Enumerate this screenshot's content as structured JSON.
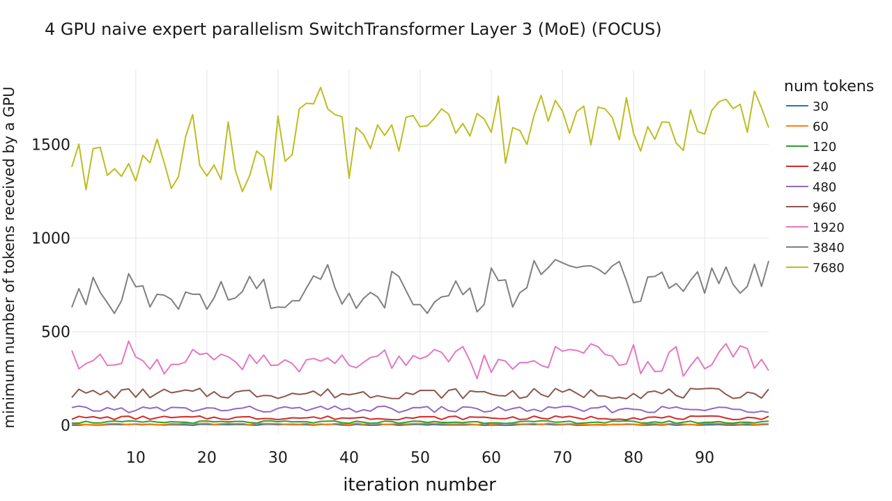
{
  "chart_data": {
    "type": "line",
    "title": "4 GPU naive expert parallelism SwitchTransformer Layer 3 (MoE) (FOCUS)",
    "xlabel": "iteration number",
    "ylabel": "minimum number of tokens received by a GPU",
    "xlim": [
      1,
      99
    ],
    "ylim": [
      -40,
      1900
    ],
    "xticks": [
      10,
      20,
      30,
      40,
      50,
      60,
      70,
      80,
      90
    ],
    "yticks": [
      0,
      500,
      1000,
      1500
    ],
    "grid": true,
    "legend_position": "right",
    "legend_title": "num tokens",
    "series": [
      {
        "name": "30",
        "color": "#1f77b4",
        "pattern": {
          "base": 3,
          "amp": 3,
          "p": 5
        }
      },
      {
        "name": "60",
        "color": "#ff7f0e",
        "pattern": {
          "base": 7,
          "amp": 4,
          "p": 7
        }
      },
      {
        "name": "120",
        "color": "#2ca02c",
        "pattern": {
          "base": 17,
          "amp": 7,
          "p": 3
        }
      },
      {
        "name": "240",
        "color": "#d62728",
        "pattern": {
          "base": 40,
          "amp": 10,
          "p": 4
        }
      },
      {
        "name": "480",
        "color": "#9467bd",
        "pattern": {
          "base": 85,
          "amp": 18,
          "p": 6
        }
      },
      {
        "name": "960",
        "color": "#8c564b",
        "pattern": {
          "base": 170,
          "amp": 28,
          "p": 2
        }
      },
      {
        "name": "1920",
        "color": "#e377c2",
        "values": [
          400,
          302,
          330,
          345,
          380,
          320,
          322,
          330,
          450,
          365,
          345,
          300,
          352,
          275,
          325,
          325,
          338,
          405,
          378,
          385,
          350,
          380,
          366,
          340,
          298,
          378,
          330,
          375,
          320,
          322,
          350,
          330,
          286,
          350,
          357,
          343,
          360,
          330,
          375,
          320,
          307,
          335,
          362,
          370,
          402,
          305,
          370,
          320,
          372,
          355,
          370,
          405,
          390,
          340,
          395,
          420,
          345,
          250,
          375,
          283,
          352,
          343,
          300,
          335,
          335,
          345,
          320,
          308,
          420,
          396,
          405,
          400,
          386,
          435,
          420,
          378,
          370,
          320,
          328,
          430,
          276,
          340,
          287,
          290,
          390,
          420,
          262,
          318,
          365,
          302,
          323,
          390,
          436,
          365,
          425,
          410,
          305,
          352,
          292
        ]
      },
      {
        "name": "3840",
        "color": "#7f7f7f",
        "values": [
          630,
          730,
          645,
          790,
          710,
          655,
          598,
          665,
          810,
          740,
          745,
          632,
          700,
          695,
          672,
          620,
          712,
          700,
          700,
          620,
          680,
          768,
          670,
          680,
          715,
          795,
          730,
          780,
          625,
          632,
          630,
          665,
          665,
          733,
          798,
          780,
          858,
          735,
          648,
          705,
          625,
          677,
          710,
          686,
          627,
          822,
          795,
          720,
          645,
          645,
          598,
          658,
          686,
          692,
          771,
          698,
          733,
          606,
          646,
          840,
          773,
          777,
          632,
          708,
          735,
          880,
          806,
          842,
          885,
          868,
          852,
          842,
          850,
          852,
          835,
          808,
          851,
          875,
          772,
          655,
          663,
          792,
          795,
          818,
          732,
          757,
          716,
          774,
          820,
          706,
          840,
          757,
          846,
          752,
          706,
          742,
          860,
          742,
          878
        ]
      },
      {
        "name": "7680",
        "color": "#bcbd22",
        "values": [
          1380,
          1502,
          1258,
          1478,
          1485,
          1335,
          1370,
          1330,
          1398,
          1305,
          1442,
          1402,
          1528,
          1402,
          1265,
          1328,
          1540,
          1660,
          1388,
          1332,
          1390,
          1312,
          1620,
          1362,
          1248,
          1332,
          1465,
          1432,
          1258,
          1652,
          1410,
          1445,
          1690,
          1720,
          1717,
          1805,
          1690,
          1660,
          1648,
          1320,
          1590,
          1555,
          1478,
          1605,
          1548,
          1605,
          1465,
          1645,
          1655,
          1595,
          1600,
          1640,
          1690,
          1662,
          1560,
          1612,
          1545,
          1665,
          1636,
          1565,
          1758,
          1400,
          1590,
          1575,
          1500,
          1655,
          1762,
          1625,
          1735,
          1678,
          1560,
          1675,
          1705,
          1498,
          1700,
          1690,
          1645,
          1525,
          1750,
          1560,
          1465,
          1595,
          1528,
          1620,
          1618,
          1508,
          1468,
          1685,
          1570,
          1555,
          1682,
          1728,
          1742,
          1692,
          1715,
          1565,
          1785,
          1695,
          1590
        ]
      }
    ]
  }
}
